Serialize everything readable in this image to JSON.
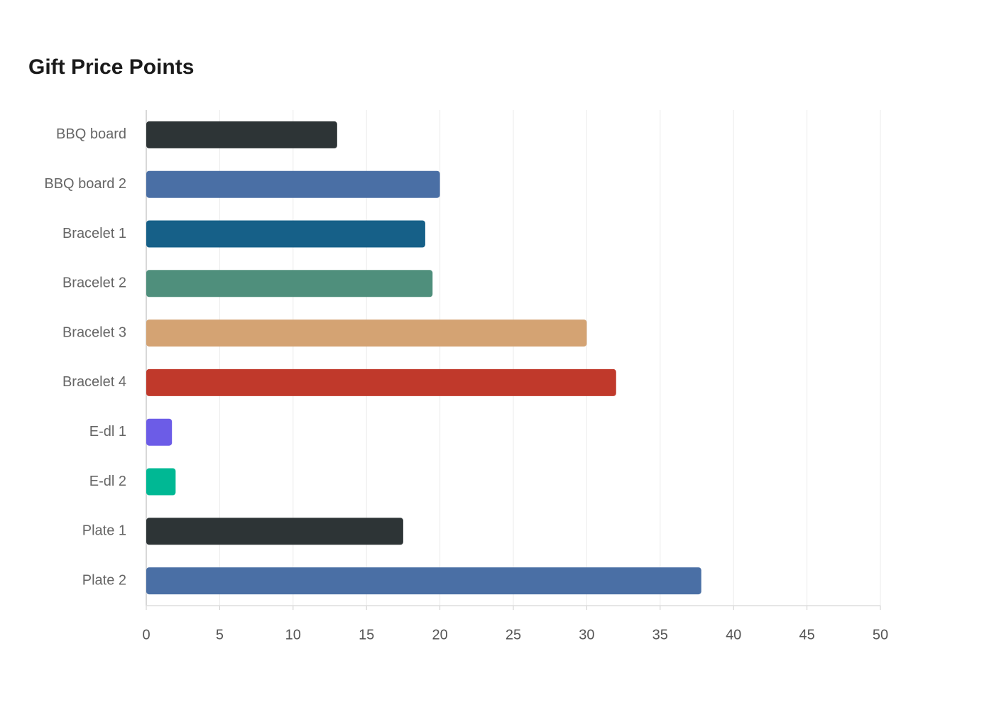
{
  "chart_data": {
    "type": "hbar",
    "title": "Gift Price Points",
    "categories": [
      "BBQ board",
      "BBQ board 2",
      "Bracelet 1",
      "Bracelet 2",
      "Bracelet 3",
      "Bracelet 4",
      "E-dl 1",
      "E-dl 2",
      "Plate 1",
      "Plate 2"
    ],
    "values": [
      13,
      20,
      19,
      19.5,
      30,
      32,
      1.75,
      2,
      17.5,
      37.8
    ],
    "colors": [
      "#2d3436",
      "#4a6fa5",
      "#166088",
      "#4f8f7c",
      "#d4a373",
      "#c0392b",
      "#6c5ce7",
      "#00b894",
      "#2d3436",
      "#4a6fa5"
    ],
    "xlim": [
      0,
      50
    ],
    "xticks": [
      0,
      5,
      10,
      15,
      20,
      25,
      30,
      35,
      40,
      45,
      50
    ],
    "grid": true
  }
}
